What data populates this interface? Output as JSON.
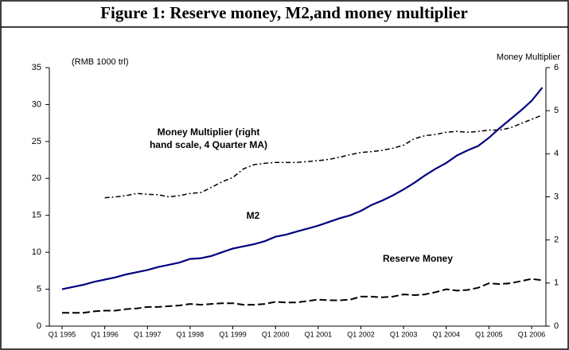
{
  "chart_data": {
    "type": "line",
    "title": "Figure 1: Reserve money, M2,and money multiplier",
    "ylabel": "(RMB 1000 trl)",
    "y2label": "Money Multiplier",
    "annotations": [
      {
        "text": "Money Multiplier (right"
      },
      {
        "text": "hand scale, 4 Quarter MA)"
      },
      {
        "text": "M2"
      },
      {
        "text": "Reserve Money"
      }
    ],
    "categories": [
      "Q1 1995",
      null,
      null,
      null,
      "Q1 1996",
      null,
      null,
      null,
      "Q1 1997",
      null,
      null,
      null,
      "Q1 1998",
      null,
      null,
      null,
      "Q1 1999",
      null,
      null,
      null,
      "Q1 2000",
      null,
      null,
      null,
      "Q1 2001",
      null,
      null,
      null,
      "Q1 2002",
      null,
      null,
      null,
      "Q1 2003",
      null,
      null,
      null,
      "Q1 2004",
      null,
      null,
      null,
      "Q1 2005",
      null,
      null,
      null,
      "Q1 2006",
      null
    ],
    "ylim": [
      0,
      35
    ],
    "yticks": [
      0,
      5,
      10,
      15,
      20,
      25,
      30,
      35
    ],
    "y2lim": [
      0,
      6
    ],
    "y2ticks": [
      0,
      1,
      2,
      3,
      4,
      5,
      6
    ],
    "series": [
      {
        "name": "M2",
        "color": "#000080",
        "style": "solid",
        "values": [
          5.0,
          5.3,
          5.6,
          6.0,
          6.3,
          6.6,
          7.0,
          7.3,
          7.6,
          8.0,
          8.3,
          8.6,
          9.1,
          9.2,
          9.5,
          10.0,
          10.5,
          10.8,
          11.1,
          11.5,
          12.1,
          12.4,
          12.8,
          13.2,
          13.6,
          14.1,
          14.6,
          15.0,
          15.6,
          16.4,
          17.0,
          17.7,
          18.5,
          19.4,
          20.4,
          21.3,
          22.1,
          23.1,
          23.8,
          24.4,
          25.5,
          26.8,
          28.0,
          29.2,
          30.5,
          32.3
        ]
      },
      {
        "name": "Reserve Money",
        "color": "#000000",
        "style": "dashed",
        "values": [
          1.8,
          1.8,
          1.8,
          2.0,
          2.1,
          2.1,
          2.3,
          2.4,
          2.6,
          2.6,
          2.7,
          2.8,
          3.0,
          2.9,
          3.0,
          3.1,
          3.1,
          2.9,
          2.9,
          3.0,
          3.3,
          3.2,
          3.2,
          3.4,
          3.6,
          3.5,
          3.5,
          3.6,
          4.0,
          4.0,
          3.9,
          4.0,
          4.3,
          4.2,
          4.3,
          4.6,
          5.0,
          4.8,
          4.9,
          5.2,
          5.8,
          5.7,
          5.8,
          6.1,
          6.4,
          6.2
        ]
      },
      {
        "name": "Money Multiplier",
        "color": "#000000",
        "style": "dashdot",
        "axis": "y2",
        "values": [
          null,
          null,
          null,
          null,
          2.98,
          3.0,
          3.03,
          3.08,
          3.06,
          3.05,
          3.0,
          3.03,
          3.08,
          3.1,
          3.22,
          3.35,
          3.45,
          3.65,
          3.75,
          3.78,
          3.8,
          3.8,
          3.8,
          3.82,
          3.84,
          3.87,
          3.92,
          3.98,
          4.03,
          4.05,
          4.08,
          4.13,
          4.2,
          4.35,
          4.42,
          4.45,
          4.5,
          4.52,
          4.5,
          4.52,
          4.55,
          4.55,
          4.6,
          4.7,
          4.8,
          4.9
        ]
      }
    ]
  }
}
